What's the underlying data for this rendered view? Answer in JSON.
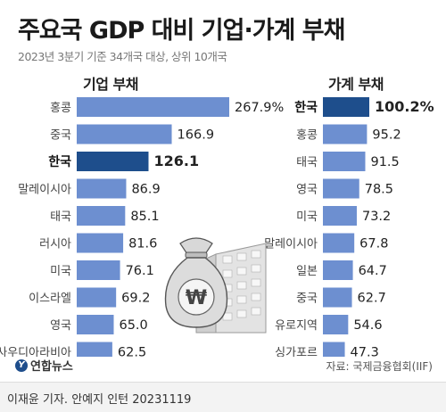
{
  "header": {
    "title": "주요국 GDP 대비 기업·가계 부채",
    "subtitle": "2023년 3분기 기준 34개국 대상, 상위 10개국"
  },
  "chart_data": [
    {
      "type": "bar",
      "orientation": "horizontal",
      "title": "기업 부채",
      "categories": [
        "홍콩",
        "중국",
        "한국",
        "말레이시아",
        "태국",
        "러시아",
        "미국",
        "이스라엘",
        "영국",
        "사우디아라비아"
      ],
      "values": [
        267.9,
        166.9,
        126.1,
        86.9,
        85.1,
        81.6,
        76.1,
        69.2,
        65.0,
        62.5
      ],
      "value_labels": [
        "267.9%",
        "166.9",
        "126.1",
        "86.9",
        "85.1",
        "81.6",
        "76.1",
        "69.2",
        "65.0",
        "62.5"
      ],
      "highlight": "한국"
    },
    {
      "type": "bar",
      "orientation": "horizontal",
      "title": "가계 부채",
      "categories": [
        "한국",
        "홍콩",
        "태국",
        "영국",
        "미국",
        "말레이시아",
        "일본",
        "중국",
        "유로지역",
        "싱가포르"
      ],
      "values": [
        100.2,
        95.2,
        91.5,
        78.5,
        73.2,
        67.8,
        64.7,
        62.7,
        54.6,
        47.3
      ],
      "value_labels": [
        "100.2%",
        "95.2",
        "91.5",
        "78.5",
        "73.2",
        "67.8",
        "64.7",
        "62.7",
        "54.6",
        "47.3"
      ],
      "highlight": "한국"
    }
  ],
  "colors": {
    "bar": "#6d8fd0",
    "bar_highlight": "#1e4e8c",
    "background": "#ffffff"
  },
  "illustration": {
    "money_bag_symbol": "₩"
  },
  "source": "자료: 국제금융협회(IIF)",
  "logo": {
    "mark": "Y",
    "text": "연합뉴스"
  },
  "credit": "이재윤 기자. 안예지 인턴  20231119"
}
